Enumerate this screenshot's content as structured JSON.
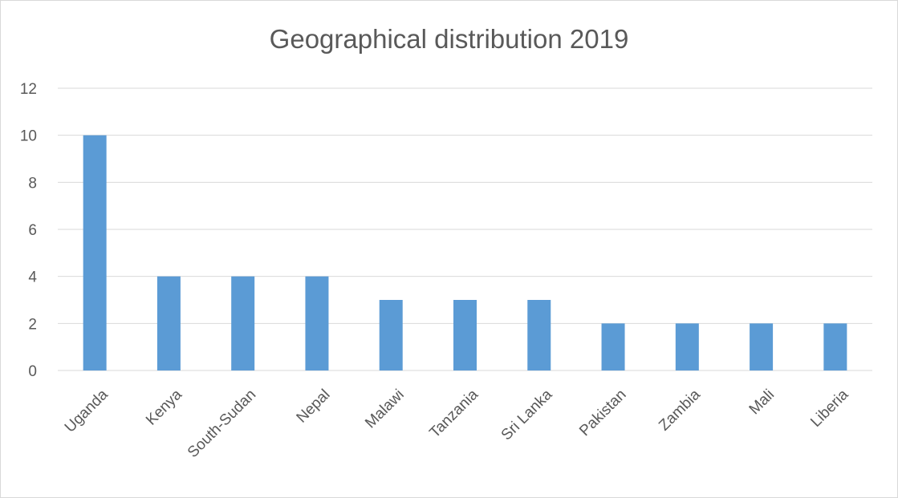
{
  "chart_data": {
    "type": "bar",
    "title": "Geographical distribution 2019",
    "xlabel": "",
    "ylabel": "",
    "categories": [
      "Uganda",
      "Kenya",
      "South-Sudan",
      "Nepal",
      "Malawi",
      "Tanzania",
      "Sri Lanka",
      "Pakistan",
      "Zambia",
      "Mali",
      "Liberia"
    ],
    "values": [
      10,
      4,
      4,
      4,
      3,
      3,
      3,
      2,
      2,
      2,
      2
    ],
    "ylim": [
      0,
      12
    ],
    "yticks": [
      0,
      2,
      4,
      6,
      8,
      10,
      12
    ],
    "grid": true,
    "legend": "none",
    "bar_color": "#5b9bd5"
  }
}
